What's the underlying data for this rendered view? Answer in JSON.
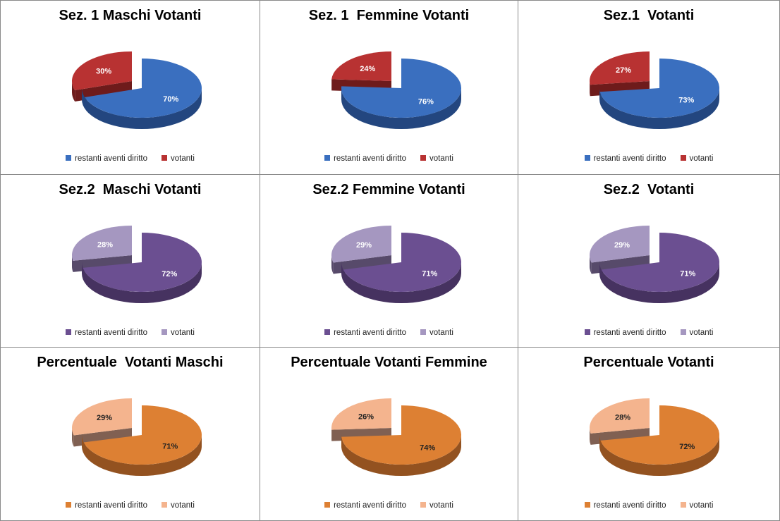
{
  "colors": {
    "red": {
      "main": "#3a6fbf",
      "main_side": "#23467f",
      "minor": "#b83232",
      "minor_side": "#6e1b1b"
    },
    "purple": {
      "main": "#6b4f91",
      "main_side": "#463260",
      "minor": "#a597c0",
      "minor_side": "#574a6a"
    },
    "orange": {
      "main": "#dd8033",
      "main_side": "#935220",
      "minor": "#f4b48e",
      "minor_side": "#806052"
    }
  },
  "chart_data": [
    {
      "type": "pie",
      "title": "Sez. 1 Maschi Votanti",
      "palette": "red",
      "categories": [
        "restanti aventi diritto",
        "votanti"
      ],
      "values": [
        70,
        30
      ],
      "labels": [
        "70%",
        "30%"
      ]
    },
    {
      "type": "pie",
      "title": "Sez. 1  Femmine Votanti",
      "palette": "red",
      "categories": [
        "restanti aventi diritto",
        "votanti"
      ],
      "values": [
        76,
        24
      ],
      "labels": [
        "76%",
        "24%"
      ]
    },
    {
      "type": "pie",
      "title": "Sez.1  Votanti",
      "palette": "red",
      "categories": [
        "restanti aventi diritto",
        "votanti"
      ],
      "values": [
        73,
        27
      ],
      "labels": [
        "73%",
        "27%"
      ]
    },
    {
      "type": "pie",
      "title": "Sez.2  Maschi Votanti",
      "palette": "purple",
      "categories": [
        "restanti aventi diritto",
        "votanti"
      ],
      "values": [
        72,
        28
      ],
      "labels": [
        "72%",
        "28%"
      ]
    },
    {
      "type": "pie",
      "title": "Sez.2 Femmine Votanti",
      "palette": "purple",
      "categories": [
        "restanti aventi diritto",
        "votanti"
      ],
      "values": [
        71,
        29
      ],
      "labels": [
        "71%",
        "29%"
      ]
    },
    {
      "type": "pie",
      "title": "Sez.2  Votanti",
      "palette": "purple",
      "categories": [
        "restanti aventi diritto",
        "votanti"
      ],
      "values": [
        71,
        29
      ],
      "labels": [
        "71%",
        "29%"
      ]
    },
    {
      "type": "pie",
      "title": "Percentuale  Votanti Maschi",
      "palette": "orange",
      "categories": [
        "restanti aventi diritto",
        "votanti"
      ],
      "values": [
        71,
        29
      ],
      "labels": [
        "71%",
        "29%"
      ]
    },
    {
      "type": "pie",
      "title": "Percentuale Votanti Femmine",
      "palette": "orange",
      "categories": [
        "restanti aventi diritto",
        "votanti"
      ],
      "values": [
        74,
        26
      ],
      "labels": [
        "74%",
        "26%"
      ]
    },
    {
      "type": "pie",
      "title": "Percentuale Votanti",
      "palette": "orange",
      "categories": [
        "restanti aventi diritto",
        "votanti"
      ],
      "values": [
        72,
        28
      ],
      "labels": [
        "72%",
        "28%"
      ]
    }
  ]
}
